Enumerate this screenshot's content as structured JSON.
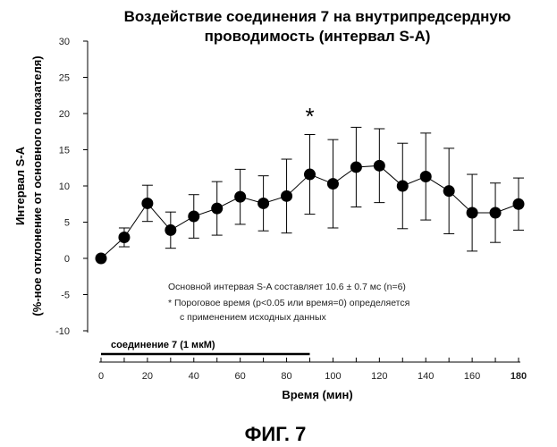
{
  "chart_data": {
    "type": "line",
    "title": [
      "Воздействие соединения 7 на внутрипредсердную",
      "проводимость (интервал S-A)"
    ],
    "ylabel": [
      "Интервал S-A",
      "(%-ное отклонение от основного показателя)"
    ],
    "xlabel": "Время (мин)",
    "xlim": [
      0,
      180
    ],
    "ylim": [
      -10,
      30
    ],
    "xticks": [
      0,
      20,
      40,
      60,
      80,
      100,
      120,
      140,
      160,
      180
    ],
    "yticks": [
      -10,
      -5,
      0,
      5,
      10,
      15,
      20,
      25,
      30
    ],
    "grid": false,
    "series": [
      {
        "x": [
          0,
          10,
          20,
          30,
          40,
          50,
          60,
          70,
          80,
          90,
          100,
          110,
          120,
          130,
          140,
          150,
          160,
          170,
          180
        ],
        "y": [
          0,
          2.9,
          7.6,
          3.9,
          5.8,
          6.9,
          8.5,
          7.6,
          8.6,
          11.6,
          10.3,
          12.6,
          12.8,
          10.0,
          11.3,
          9.3,
          6.3,
          6.3,
          7.5
        ],
        "err": [
          0,
          1.3,
          2.5,
          2.5,
          3.0,
          3.7,
          3.8,
          3.8,
          5.1,
          5.5,
          6.1,
          5.5,
          5.1,
          5.9,
          6.0,
          5.9,
          5.3,
          4.1,
          3.6
        ]
      }
    ],
    "annotations": [
      {
        "text": "*",
        "x": 90,
        "y": 19.6
      }
    ],
    "notes": [
      "Основной интервая S-A составляет 10.6 ± 0.7 мс (n=6)",
      "*  Пороговое время (p<0.05 или время=0) определяется",
      "с применением исходных данных"
    ],
    "treatment_bar": {
      "label": "соединение 7 (1 мкМ)",
      "x_start": 0,
      "x_end": 90
    },
    "figure_label": "ФИГ. 7"
  }
}
